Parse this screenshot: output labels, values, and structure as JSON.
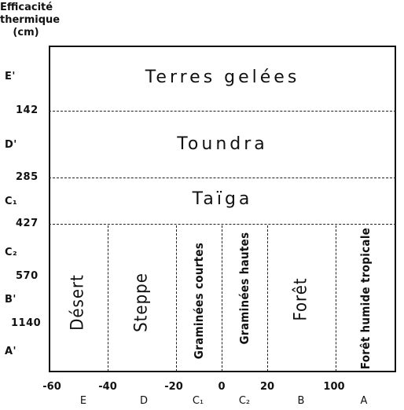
{
  "y_axis": {
    "title_line1": "Efficacité",
    "title_line2": "thermique",
    "title_line3": "(cm)",
    "labels": [
      "E'",
      "142",
      "D'",
      "285",
      "C₁",
      "427",
      "C₂",
      "570",
      "B'",
      "1140",
      "A'"
    ]
  },
  "x_axis": {
    "ticks": [
      "-60",
      "-40",
      "-20",
      "0",
      "20",
      "100"
    ],
    "zones": [
      "E",
      "D",
      "C₁",
      "C₂",
      "B",
      "A"
    ]
  },
  "horizontal_zones": {
    "terres_gelees": "Terres gelées",
    "toundra": "Toundra",
    "taiga": "Taïga"
  },
  "vertical_zones": {
    "desert": "Désert",
    "steppe": "Steppe",
    "graminees_courtes": "Graminées courtes",
    "graminees_hautes": "Graminées hautes",
    "foret": "Forêt",
    "foret_humide": "Forêt humide tropicale"
  }
}
